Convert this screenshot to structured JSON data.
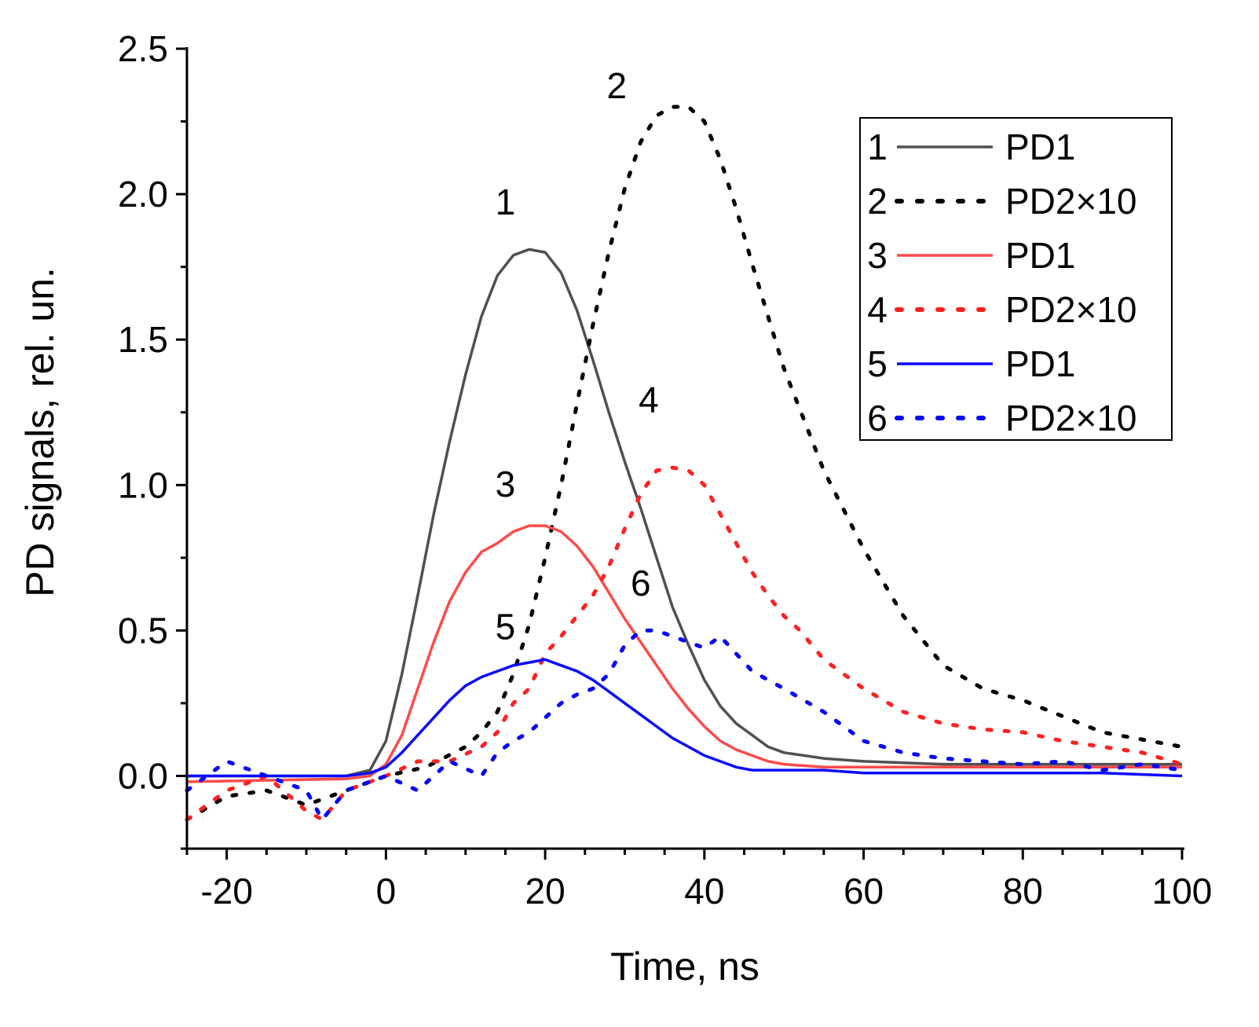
{
  "chart_data": {
    "type": "line",
    "xlabel": "Time, ns",
    "ylabel": "PD signals, rel. un.",
    "xlim": [
      -25,
      100
    ],
    "ylim": [
      -0.25,
      2.5
    ],
    "xticks": [
      -20,
      0,
      20,
      40,
      60,
      80,
      100
    ],
    "xtick_labels": [
      "-20",
      "0",
      "20",
      "40",
      "60",
      "80",
      "100"
    ],
    "yticks": [
      0.0,
      0.5,
      1.0,
      1.5,
      2.0,
      2.5
    ],
    "ytick_labels": [
      "0.0",
      "0.5",
      "1.0",
      "1.5",
      "2.0",
      "2.5"
    ],
    "legend_position": "top-right",
    "series": [
      {
        "id": "1",
        "name": "PD1",
        "color": "#505050",
        "style": "solid",
        "label_at": [
          15,
          1.93
        ],
        "x": [
          -25,
          -5,
          -2,
          0,
          2,
          4,
          6,
          8,
          10,
          12,
          14,
          16,
          18,
          20,
          22,
          24,
          26,
          28,
          30,
          32,
          34,
          36,
          38,
          40,
          42,
          44,
          46,
          48,
          50,
          55,
          60,
          70,
          80,
          90,
          100
        ],
        "y": [
          0.0,
          0.0,
          0.02,
          0.12,
          0.35,
          0.62,
          0.9,
          1.15,
          1.38,
          1.58,
          1.72,
          1.79,
          1.81,
          1.8,
          1.73,
          1.6,
          1.43,
          1.25,
          1.08,
          0.92,
          0.75,
          0.58,
          0.45,
          0.33,
          0.24,
          0.18,
          0.14,
          0.1,
          0.08,
          0.06,
          0.05,
          0.04,
          0.04,
          0.04,
          0.04
        ]
      },
      {
        "id": "2",
        "name": "PD2×10",
        "color": "#000000",
        "style": "dotted",
        "label_at": [
          29,
          2.33
        ],
        "x": [
          -25,
          -20,
          -15,
          -10,
          -5,
          0,
          5,
          10,
          12,
          14,
          16,
          18,
          20,
          22,
          24,
          26,
          28,
          30,
          32,
          34,
          36,
          38,
          40,
          42,
          44,
          46,
          48,
          50,
          55,
          60,
          65,
          70,
          75,
          80,
          90,
          100
        ],
        "y": [
          -0.15,
          -0.07,
          -0.05,
          -0.1,
          -0.05,
          0.0,
          0.03,
          0.1,
          0.15,
          0.22,
          0.35,
          0.52,
          0.75,
          1.0,
          1.28,
          1.55,
          1.8,
          2.02,
          2.18,
          2.27,
          2.3,
          2.3,
          2.25,
          2.12,
          1.95,
          1.76,
          1.58,
          1.4,
          1.05,
          0.78,
          0.55,
          0.38,
          0.3,
          0.26,
          0.15,
          0.1
        ]
      },
      {
        "id": "3",
        "name": "PD1",
        "color": "#ff4a4a",
        "style": "solid",
        "label_at": [
          15,
          0.96
        ],
        "x": [
          -25,
          -5,
          -2,
          0,
          2,
          4,
          6,
          8,
          10,
          12,
          14,
          16,
          18,
          20,
          22,
          24,
          26,
          28,
          30,
          32,
          34,
          36,
          38,
          40,
          42,
          44,
          46,
          48,
          50,
          55,
          60,
          70,
          80,
          90,
          100
        ],
        "y": [
          -0.02,
          -0.01,
          0.0,
          0.04,
          0.14,
          0.3,
          0.46,
          0.6,
          0.7,
          0.77,
          0.8,
          0.84,
          0.86,
          0.86,
          0.84,
          0.79,
          0.72,
          0.63,
          0.54,
          0.46,
          0.38,
          0.3,
          0.23,
          0.17,
          0.12,
          0.09,
          0.07,
          0.05,
          0.04,
          0.03,
          0.03,
          0.03,
          0.03,
          0.03,
          0.03
        ]
      },
      {
        "id": "4",
        "name": "PD2×10",
        "color": "#ff2020",
        "style": "dotted",
        "label_at": [
          33,
          1.25
        ],
        "x": [
          -25,
          -20,
          -15,
          -10,
          -8,
          -5,
          0,
          4,
          8,
          12,
          14,
          16,
          18,
          20,
          22,
          24,
          26,
          28,
          30,
          32,
          34,
          36,
          38,
          40,
          42,
          44,
          46,
          48,
          50,
          52,
          55,
          60,
          65,
          70,
          75,
          80,
          85,
          90,
          95,
          100
        ],
        "y": [
          -0.15,
          -0.05,
          0.0,
          -0.12,
          -0.15,
          -0.05,
          0.0,
          0.05,
          0.05,
          0.1,
          0.15,
          0.25,
          0.3,
          0.42,
          0.48,
          0.55,
          0.62,
          0.72,
          0.85,
          0.97,
          1.05,
          1.06,
          1.05,
          1.0,
          0.9,
          0.8,
          0.7,
          0.62,
          0.55,
          0.5,
          0.4,
          0.3,
          0.22,
          0.18,
          0.16,
          0.15,
          0.12,
          0.1,
          0.08,
          0.04
        ]
      },
      {
        "id": "5",
        "name": "PD1",
        "color": "#0a0aff",
        "style": "solid",
        "label_at": [
          15,
          0.47
        ],
        "x": [
          -25,
          -5,
          -2,
          0,
          2,
          4,
          6,
          8,
          10,
          12,
          14,
          16,
          18,
          20,
          22,
          24,
          26,
          28,
          30,
          32,
          34,
          36,
          38,
          40,
          42,
          44,
          46,
          48,
          50,
          55,
          60,
          70,
          80,
          90,
          100
        ],
        "y": [
          0.0,
          0.0,
          0.01,
          0.03,
          0.08,
          0.14,
          0.2,
          0.26,
          0.31,
          0.34,
          0.36,
          0.38,
          0.39,
          0.4,
          0.38,
          0.36,
          0.33,
          0.29,
          0.25,
          0.21,
          0.17,
          0.13,
          0.1,
          0.07,
          0.05,
          0.03,
          0.02,
          0.02,
          0.02,
          0.02,
          0.01,
          0.01,
          0.01,
          0.01,
          0.0
        ]
      },
      {
        "id": "6",
        "name": "PD2×10",
        "color": "#0000ff",
        "style": "dotted",
        "label_at": [
          32,
          0.62
        ],
        "x": [
          -25,
          -20,
          -15,
          -10,
          -8,
          -5,
          0,
          4,
          8,
          12,
          14,
          16,
          18,
          20,
          22,
          24,
          26,
          28,
          30,
          32,
          34,
          36,
          38,
          40,
          42,
          44,
          46,
          48,
          50,
          55,
          60,
          65,
          70,
          75,
          80,
          85,
          90,
          95,
          100
        ],
        "y": [
          -0.05,
          0.05,
          0.0,
          -0.05,
          -0.15,
          -0.05,
          0.0,
          -0.05,
          0.05,
          0.0,
          0.08,
          0.12,
          0.15,
          0.2,
          0.25,
          0.28,
          0.3,
          0.35,
          0.45,
          0.5,
          0.5,
          0.48,
          0.46,
          0.44,
          0.48,
          0.42,
          0.36,
          0.33,
          0.3,
          0.22,
          0.12,
          0.08,
          0.06,
          0.05,
          0.04,
          0.05,
          0.02,
          0.04,
          0.02
        ]
      }
    ]
  }
}
